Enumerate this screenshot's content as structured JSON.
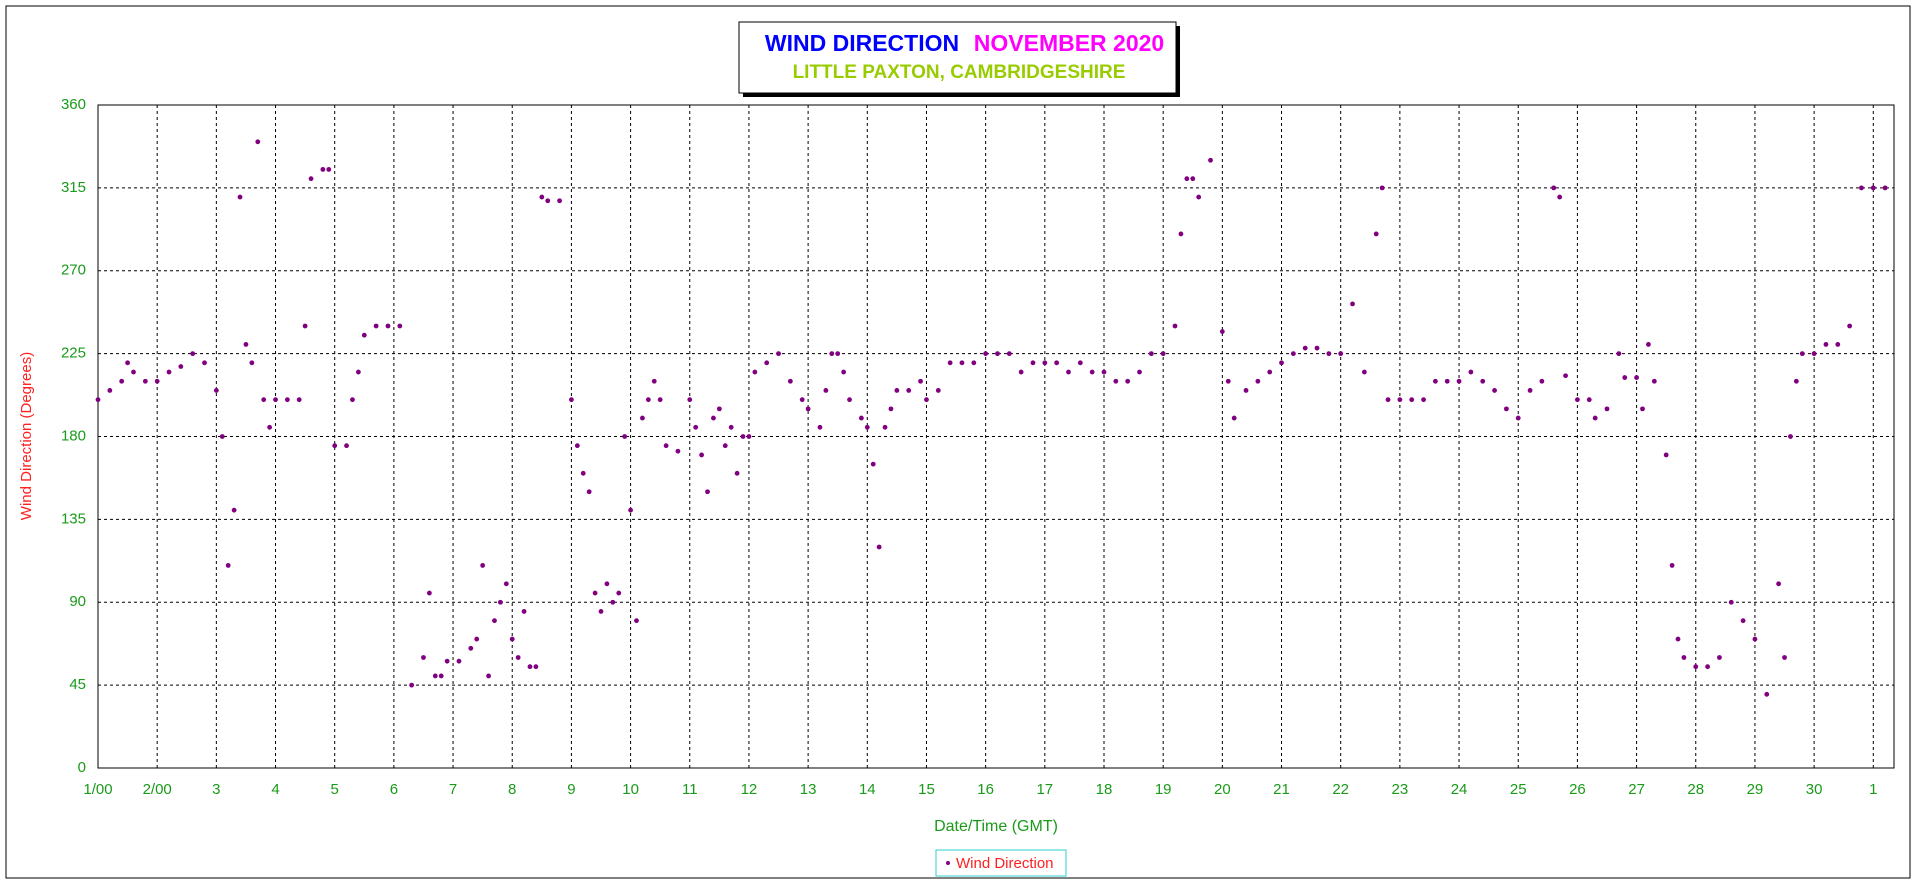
{
  "chart_data": {
    "type": "scatter",
    "title": "WIND DIRECTION",
    "title_date": "NOVEMBER 2020",
    "subtitle": "LITTLE PAXTON, CAMBRIDGESHIRE",
    "x_label": "Date/Time (GMT)",
    "y_label": "Wind Direction (Degrees)",
    "xlim": [
      1,
      31.35
    ],
    "ylim": [
      0,
      360
    ],
    "xticks": [
      {
        "value": 1,
        "label": "1/00"
      },
      {
        "value": 2,
        "label": "2/00"
      },
      3,
      4,
      5,
      6,
      7,
      8,
      9,
      10,
      11,
      12,
      13,
      14,
      15,
      16,
      17,
      18,
      19,
      20,
      21,
      22,
      23,
      24,
      25,
      26,
      27,
      28,
      29,
      30,
      {
        "value": 31,
        "label": "1"
      }
    ],
    "yticks": [
      0,
      45,
      90,
      135,
      180,
      225,
      270,
      315,
      360
    ],
    "grid": true,
    "legend": "bottom",
    "series": [
      {
        "name": "Wind Direction",
        "color": "#800080",
        "x": [
          1.0,
          1.2,
          1.4,
          1.5,
          1.6,
          1.8,
          2.0,
          2.2,
          2.4,
          2.6,
          2.8,
          3.0,
          3.1,
          3.2,
          3.3,
          3.4,
          3.5,
          3.6,
          3.7,
          3.8,
          3.9,
          4.0,
          4.2,
          4.4,
          4.5,
          4.6,
          4.8,
          4.9,
          5.0,
          5.2,
          5.3,
          5.4,
          5.5,
          5.7,
          5.9,
          6.1,
          6.3,
          6.5,
          6.6,
          6.7,
          6.8,
          6.9,
          7.1,
          7.3,
          7.4,
          7.5,
          7.6,
          7.7,
          7.8,
          7.9,
          8.0,
          8.1,
          8.2,
          8.3,
          8.4,
          8.5,
          8.6,
          8.8,
          9.0,
          9.1,
          9.2,
          9.3,
          9.4,
          9.5,
          9.6,
          9.7,
          9.8,
          9.9,
          10.0,
          10.1,
          10.2,
          10.3,
          10.4,
          10.5,
          10.6,
          10.8,
          11.0,
          11.1,
          11.2,
          11.3,
          11.4,
          11.5,
          11.6,
          11.7,
          11.8,
          11.9,
          12.0,
          12.1,
          12.3,
          12.5,
          12.7,
          12.9,
          13.0,
          13.2,
          13.3,
          13.4,
          13.5,
          13.6,
          13.7,
          13.9,
          14.0,
          14.1,
          14.2,
          14.3,
          14.4,
          14.5,
          14.7,
          14.9,
          15.0,
          15.2,
          15.4,
          15.6,
          15.8,
          16.0,
          16.2,
          16.4,
          16.6,
          16.8,
          17.0,
          17.2,
          17.4,
          17.6,
          17.8,
          18.0,
          18.2,
          18.4,
          18.6,
          18.8,
          19.0,
          19.2,
          19.3,
          19.4,
          19.5,
          19.6,
          19.8,
          20.0,
          20.1,
          20.2,
          20.4,
          20.6,
          20.8,
          21.0,
          21.2,
          21.4,
          21.6,
          21.8,
          22.0,
          22.2,
          22.4,
          22.6,
          22.7,
          22.8,
          23.0,
          23.2,
          23.4,
          23.6,
          23.8,
          24.0,
          24.2,
          24.4,
          24.6,
          24.8,
          25.0,
          25.2,
          25.4,
          25.6,
          25.7,
          25.8,
          26.0,
          26.2,
          26.3,
          26.5,
          26.7,
          26.8,
          27.0,
          27.1,
          27.2,
          27.3,
          27.5,
          27.6,
          27.7,
          27.8,
          28.0,
          28.2,
          28.4,
          28.6,
          28.8,
          29.0,
          29.2,
          29.4,
          29.5,
          29.6,
          29.7,
          29.8,
          30.0,
          30.2,
          30.4,
          30.6,
          30.8,
          31.0,
          31.2
        ],
        "values": [
          200,
          205,
          210,
          220,
          215,
          210,
          210,
          215,
          218,
          225,
          220,
          205,
          180,
          110,
          140,
          310,
          230,
          220,
          340,
          200,
          185,
          200,
          200,
          200,
          240,
          320,
          325,
          325,
          175,
          175,
          200,
          215,
          235,
          240,
          240,
          240,
          45,
          60,
          95,
          50,
          50,
          58,
          58,
          65,
          70,
          110,
          50,
          80,
          90,
          100,
          70,
          60,
          85,
          55,
          55,
          310,
          308,
          308,
          200,
          175,
          160,
          150,
          95,
          85,
          100,
          90,
          95,
          180,
          140,
          80,
          190,
          200,
          210,
          200,
          175,
          172,
          200,
          185,
          170,
          150,
          190,
          195,
          175,
          185,
          160,
          180,
          180,
          215,
          220,
          225,
          210,
          200,
          195,
          185,
          205,
          225,
          225,
          215,
          200,
          190,
          185,
          165,
          120,
          185,
          195,
          205,
          205,
          210,
          200,
          205,
          220,
          220,
          220,
          225,
          225,
          225,
          215,
          220,
          220,
          220,
          215,
          220,
          215,
          215,
          210,
          210,
          215,
          225,
          225,
          240,
          290,
          320,
          320,
          310,
          330,
          237,
          210,
          190,
          205,
          210,
          215,
          220,
          225,
          228,
          228,
          225,
          225,
          252,
          215,
          290,
          315,
          200,
          200,
          200,
          200,
          210,
          210,
          210,
          215,
          210,
          205,
          195,
          190,
          205,
          210,
          315,
          310,
          213,
          200,
          200,
          190,
          195,
          225,
          212,
          212,
          195,
          230,
          210,
          170,
          110,
          70,
          60,
          55,
          55,
          60,
          90,
          80,
          70,
          40,
          100,
          60,
          180,
          210,
          225,
          225,
          230,
          230,
          240,
          315,
          315,
          315
        ]
      }
    ]
  }
}
